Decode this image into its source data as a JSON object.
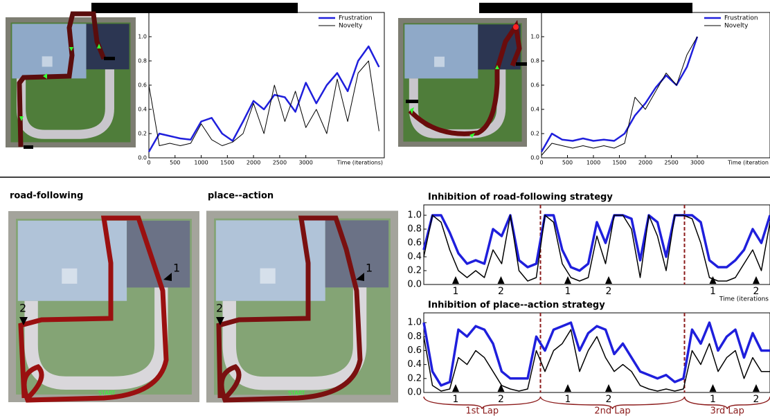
{
  "chart_data": [
    {
      "type": "line",
      "xlabel": "Time (iterations)",
      "x": [
        0,
        200,
        400,
        600,
        800,
        1000,
        1200,
        1400,
        1600,
        1800,
        2000,
        2200,
        2400,
        2600,
        2800,
        3000,
        3200,
        3400,
        3600,
        3800,
        4000,
        4200,
        4400
      ],
      "series": [
        {
          "name": "Frustration",
          "color": "#1f1fdc",
          "values": [
            0.05,
            0.2,
            0.18,
            0.16,
            0.15,
            0.3,
            0.33,
            0.2,
            0.14,
            0.3,
            0.47,
            0.4,
            0.52,
            0.5,
            0.38,
            0.62,
            0.45,
            0.6,
            0.7,
            0.55,
            0.8,
            0.92,
            0.75
          ]
        },
        {
          "name": "Novelty",
          "color": "#000000",
          "values": [
            0.6,
            0.1,
            0.12,
            0.1,
            0.12,
            0.28,
            0.15,
            0.1,
            0.13,
            0.2,
            0.45,
            0.2,
            0.6,
            0.3,
            0.55,
            0.25,
            0.4,
            0.2,
            0.65,
            0.3,
            0.7,
            0.8,
            0.22
          ]
        }
      ],
      "xlim": [
        0,
        4500
      ],
      "xticks": [
        0,
        500,
        1000,
        1500,
        2000,
        2500,
        3000
      ],
      "ylim": [
        0,
        1.2
      ],
      "yticks": [
        {
          "value": 0,
          "label": "0.0"
        },
        {
          "value": 0.2,
          "label": "0.2"
        },
        {
          "value": 0.4,
          "label": "0.4"
        },
        {
          "value": 0.6,
          "label": "0.6"
        },
        {
          "value": 0.8,
          "label": "0.8"
        },
        {
          "value": 1,
          "label": "1.0"
        }
      ],
      "legend": "upper right"
    },
    {
      "type": "line",
      "xlabel": "Time (iteration",
      "x": [
        0,
        200,
        400,
        600,
        800,
        1000,
        1200,
        1400,
        1600,
        1800,
        2000,
        2200,
        2400,
        2600,
        2800,
        3000
      ],
      "series": [
        {
          "name": "Frustration",
          "color": "#1f1fdc",
          "values": [
            0.05,
            0.2,
            0.15,
            0.14,
            0.16,
            0.14,
            0.15,
            0.14,
            0.2,
            0.35,
            0.45,
            0.58,
            0.68,
            0.6,
            0.75,
            1.0
          ]
        },
        {
          "name": "Novelty",
          "color": "#000000",
          "values": [
            0.02,
            0.12,
            0.1,
            0.08,
            0.1,
            0.08,
            0.1,
            0.08,
            0.12,
            0.5,
            0.4,
            0.55,
            0.7,
            0.6,
            0.85,
            1.0
          ]
        }
      ],
      "xlim": [
        0,
        4400
      ],
      "xticks": [
        0,
        500,
        1000,
        1500,
        2000,
        2500,
        3000
      ],
      "ylim": [
        0,
        1.2
      ],
      "yticks": [
        {
          "value": 0,
          "label": "0.0"
        },
        {
          "value": 0.2,
          "label": "0.2"
        },
        {
          "value": 0.4,
          "label": "0.4"
        },
        {
          "value": 0.6,
          "label": "0.6"
        },
        {
          "value": 0.8,
          "label": "0.8"
        },
        {
          "value": 1,
          "label": "1.0"
        }
      ],
      "legend": "upper right"
    },
    {
      "type": "line",
      "title": "Inhibition of road-following strategy",
      "xlabel": "Time (iterations",
      "x": [
        0,
        2.5,
        5,
        7.5,
        10,
        12.5,
        15,
        17.5,
        20,
        22.5,
        25,
        27.5,
        30,
        32.5,
        35,
        37.5,
        40,
        42.5,
        45,
        47.5,
        50,
        52.5,
        55,
        57.5,
        60,
        62.5,
        65,
        67.5,
        70,
        72.5,
        75,
        77.5,
        80,
        82.5,
        85,
        87.5,
        90,
        92.5,
        95,
        97.5,
        100
      ],
      "series": [
        {
          "color": "#1f1fdc",
          "values": [
            0.5,
            1.0,
            1.0,
            0.75,
            0.45,
            0.3,
            0.35,
            0.3,
            0.8,
            0.7,
            1.0,
            0.35,
            0.25,
            0.3,
            1.0,
            1.0,
            0.5,
            0.25,
            0.2,
            0.3,
            0.9,
            0.6,
            1.0,
            1.0,
            0.95,
            0.35,
            1.0,
            0.9,
            0.4,
            1.0,
            1.0,
            1.0,
            0.9,
            0.35,
            0.25,
            0.25,
            0.35,
            0.5,
            0.8,
            0.6,
            1.0
          ]
        },
        {
          "color": "#000000",
          "values": [
            0.4,
            1.0,
            0.9,
            0.5,
            0.2,
            0.1,
            0.2,
            0.1,
            0.5,
            0.3,
            1.0,
            0.2,
            0.05,
            0.1,
            1.0,
            0.9,
            0.3,
            0.1,
            0.05,
            0.1,
            0.7,
            0.3,
            1.0,
            1.0,
            0.8,
            0.1,
            1.0,
            0.7,
            0.2,
            1.0,
            1.0,
            0.95,
            0.6,
            0.1,
            0.05,
            0.05,
            0.1,
            0.3,
            0.5,
            0.2,
            0.9
          ]
        }
      ],
      "xlim": [
        0,
        100
      ],
      "ylim": [
        0,
        1.15
      ],
      "yticks": [
        {
          "value": 0,
          "label": "0.0"
        },
        {
          "value": 0.2,
          "label": "0.2"
        },
        {
          "value": 0.4,
          "label": "0.4"
        },
        {
          "value": 0.6,
          "label": "0.6"
        },
        {
          "value": 0.8,
          "label": "0.8"
        },
        {
          "value": 1,
          "label": "1.0"
        }
      ],
      "lap_lines": [
        33.7,
        75.3
      ],
      "events": [
        {
          "x": 9.2,
          "label": "1"
        },
        {
          "x": 22.3,
          "label": "2"
        },
        {
          "x": 41.6,
          "label": "1"
        },
        {
          "x": 53.4,
          "label": "2"
        },
        {
          "x": 83.5,
          "label": "1"
        },
        {
          "x": 96,
          "label": "2"
        }
      ]
    },
    {
      "type": "line",
      "title": "Inhibition of place--action strategy",
      "x": [
        0,
        2.5,
        5,
        7.5,
        10,
        12.5,
        15,
        17.5,
        20,
        22.5,
        25,
        27.5,
        30,
        32.5,
        35,
        37.5,
        40,
        42.5,
        45,
        47.5,
        50,
        52.5,
        55,
        57.5,
        60,
        62.5,
        65,
        67.5,
        70,
        72.5,
        75,
        77.5,
        80,
        82.5,
        85,
        87.5,
        90,
        92.5,
        95,
        97.5,
        100
      ],
      "series": [
        {
          "color": "#1f1fdc",
          "values": [
            1.0,
            0.3,
            0.1,
            0.15,
            0.9,
            0.8,
            0.95,
            0.9,
            0.7,
            0.3,
            0.2,
            0.2,
            0.2,
            0.8,
            0.6,
            0.9,
            0.95,
            1.0,
            0.6,
            0.85,
            0.95,
            0.9,
            0.55,
            0.7,
            0.5,
            0.3,
            0.25,
            0.2,
            0.25,
            0.15,
            0.2,
            0.9,
            0.7,
            1.0,
            0.6,
            0.8,
            0.9,
            0.5,
            0.85,
            0.6,
            0.6
          ]
        },
        {
          "color": "#000000",
          "values": [
            0.8,
            0.1,
            0.02,
            0.05,
            0.5,
            0.4,
            0.6,
            0.5,
            0.3,
            0.1,
            0.05,
            0.02,
            0.05,
            0.6,
            0.3,
            0.6,
            0.7,
            0.9,
            0.3,
            0.6,
            0.8,
            0.5,
            0.3,
            0.4,
            0.3,
            0.1,
            0.05,
            0.02,
            0.05,
            0.02,
            0.05,
            0.6,
            0.4,
            0.7,
            0.3,
            0.5,
            0.6,
            0.2,
            0.5,
            0.3,
            0.3
          ]
        }
      ],
      "xlim": [
        0,
        100
      ],
      "ylim": [
        0,
        1.14
      ],
      "yticks": [
        {
          "value": 0,
          "label": "0.0"
        },
        {
          "value": 0.2,
          "label": "0.2"
        },
        {
          "value": 0.4,
          "label": "0.4"
        },
        {
          "value": 0.6,
          "label": "0.6"
        },
        {
          "value": 0.8,
          "label": "0.8"
        },
        {
          "value": 1,
          "label": "1.0"
        }
      ],
      "lap_lines": [
        33.7,
        75.3
      ],
      "events": [
        {
          "x": 9.2,
          "label": "1"
        },
        {
          "x": 22.3,
          "label": "2"
        },
        {
          "x": 41.6,
          "label": "1"
        },
        {
          "x": 53.4,
          "label": "2"
        },
        {
          "x": 83.5,
          "label": "1"
        },
        {
          "x": 96,
          "label": "2"
        }
      ],
      "laps": [
        {
          "label": "1st Lap",
          "start": 0,
          "end": 33.7
        },
        {
          "label": "2nd Lap",
          "start": 33.7,
          "end": 75.3
        },
        {
          "label": "3rd Lap",
          "start": 75.3,
          "end": 100
        }
      ]
    }
  ],
  "maps": [
    {
      "title": "road-following",
      "markers": [
        "1",
        "2"
      ],
      "start": "START"
    },
    {
      "title": "place--action",
      "markers": [
        "1",
        "2"
      ],
      "start": "START"
    }
  ]
}
